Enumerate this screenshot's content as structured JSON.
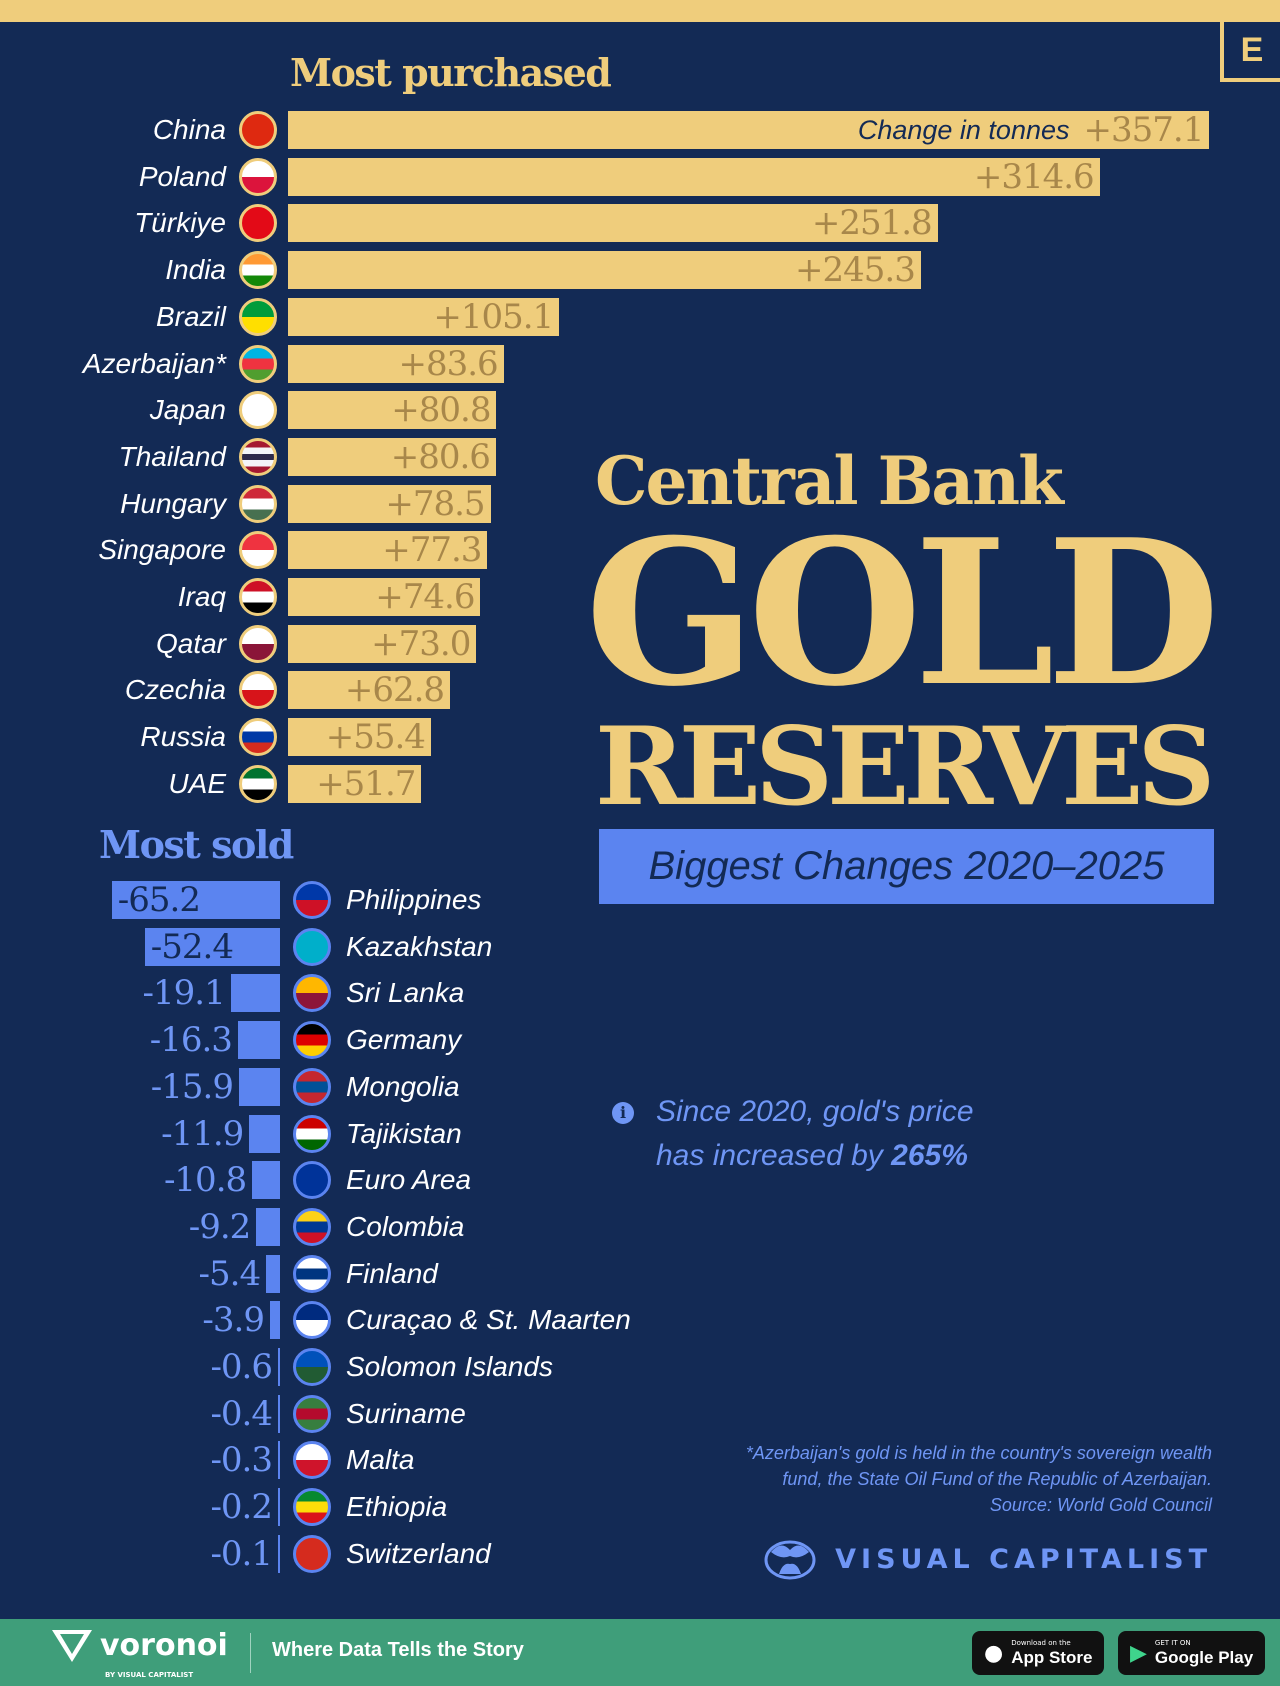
{
  "brand_badge": "E",
  "title": {
    "line1": "Central Bank",
    "line2": "GOLD",
    "line3": "RESERVES",
    "subtitle": "Biggest Changes 2020–2025"
  },
  "colors": {
    "background": "#132a55",
    "gold": "#efcd7c",
    "blue": "#5b84f0",
    "footer": "#3f9e7a"
  },
  "info": {
    "icon": "info-icon",
    "line1": "Since 2020, gold's price",
    "line2_prefix": "has increased by ",
    "line2_bold": "265%"
  },
  "footnote": {
    "line1": "*Azerbaijan's gold is held in the country's sovereign wealth",
    "line2": "fund, the State Oil Fund of the Republic of Azerbaijan.",
    "line3": "Source: World Gold Council"
  },
  "publisher": "VISUAL CAPITALIST",
  "footer": {
    "logo": "voronoi",
    "logo_by": "BY VISUAL CAPITALIST",
    "tagline": "Where Data Tells the Story",
    "app_store_small": "Download on the",
    "app_store": "App Store",
    "google_small": "GET IT ON",
    "google": "Google Play"
  },
  "chart_data": {
    "type": "bar",
    "unit_label": "Change in tonnes",
    "purchased": {
      "title": "Most purchased",
      "categories": [
        "China",
        "Poland",
        "Türkiye",
        "India",
        "Brazil",
        "Azerbaijan*",
        "Japan",
        "Thailand",
        "Hungary",
        "Singapore",
        "Iraq",
        "Qatar",
        "Czechia",
        "Russia",
        "UAE"
      ],
      "values": [
        357.1,
        314.6,
        251.8,
        245.3,
        105.1,
        83.6,
        80.8,
        80.6,
        78.5,
        77.3,
        74.6,
        73.0,
        62.8,
        55.4,
        51.7
      ],
      "labels": [
        "+357.1",
        "+314.6",
        "+251.8",
        "+245.3",
        "+105.1",
        "+83.6",
        "+80.8",
        "+80.6",
        "+78.5",
        "+77.3",
        "+74.6",
        "+73.0",
        "+62.8",
        "+55.4",
        "+51.7"
      ],
      "flag_colors": [
        [
          "#de2910",
          "#de2910"
        ],
        [
          "#ffffff",
          "#dc143c"
        ],
        [
          "#e30a17",
          "#e30a17"
        ],
        [
          "#ff9933",
          "#ffffff",
          "#138808"
        ],
        [
          "#009c3b",
          "#ffdf00"
        ],
        [
          "#00b5e2",
          "#ef3340",
          "#509e2f"
        ],
        [
          "#ffffff",
          "#ffffff"
        ],
        [
          "#a51931",
          "#f4f5f8",
          "#2d2a4a",
          "#f4f5f8",
          "#a51931"
        ],
        [
          "#ce2939",
          "#ffffff",
          "#477050"
        ],
        [
          "#ef3340",
          "#ffffff"
        ],
        [
          "#ce1126",
          "#ffffff",
          "#000000"
        ],
        [
          "#ffffff",
          "#8a1538"
        ],
        [
          "#ffffff",
          "#d7141a"
        ],
        [
          "#ffffff",
          "#0039a6",
          "#d52b1e"
        ],
        [
          "#00732f",
          "#ffffff",
          "#000000"
        ]
      ]
    },
    "sold": {
      "title": "Most sold",
      "categories": [
        "Philippines",
        "Kazakhstan",
        "Sri Lanka",
        "Germany",
        "Mongolia",
        "Tajikistan",
        "Euro Area",
        "Colombia",
        "Finland",
        "Curaçao & St. Maarten",
        "Solomon Islands",
        "Suriname",
        "Malta",
        "Ethiopia",
        "Switzerland"
      ],
      "values": [
        -65.2,
        -52.4,
        -19.1,
        -16.3,
        -15.9,
        -11.9,
        -10.8,
        -9.2,
        -5.4,
        -3.9,
        -0.6,
        -0.4,
        -0.3,
        -0.2,
        -0.1
      ],
      "labels": [
        "-65.2",
        "-52.4",
        "-19.1",
        "-16.3",
        "-15.9",
        "-11.9",
        "-10.8",
        "-9.2",
        "-5.4",
        "-3.9",
        "-0.6",
        "-0.4",
        "-0.3",
        "-0.2",
        "-0.1"
      ],
      "flag_colors": [
        [
          "#0038a8",
          "#ce1126"
        ],
        [
          "#00afca",
          "#00afca"
        ],
        [
          "#ffb700",
          "#8d153a"
        ],
        [
          "#000000",
          "#dd0000",
          "#ffce00"
        ],
        [
          "#c4272f",
          "#015197",
          "#c4272f"
        ],
        [
          "#cc0000",
          "#ffffff",
          "#006600"
        ],
        [
          "#003399",
          "#003399"
        ],
        [
          "#fcd116",
          "#003893",
          "#ce1126"
        ],
        [
          "#ffffff",
          "#003580",
          "#ffffff"
        ],
        [
          "#002b7f",
          "#ffffff"
        ],
        [
          "#0051ba",
          "#215b33"
        ],
        [
          "#377e3f",
          "#b40a2d",
          "#377e3f"
        ],
        [
          "#ffffff",
          "#cf142b"
        ],
        [
          "#078930",
          "#fcdd09",
          "#da121a"
        ],
        [
          "#d52b1e",
          "#d52b1e"
        ]
      ]
    }
  }
}
